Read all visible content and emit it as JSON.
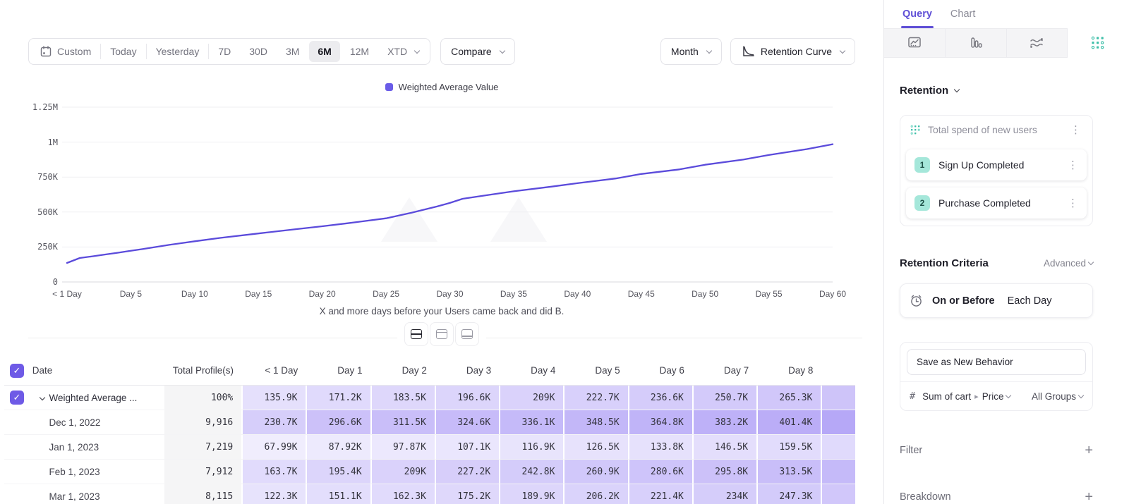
{
  "toolbar": {
    "date_ranges": [
      "Custom",
      "Today",
      "Yesterday",
      "7D",
      "30D",
      "3M",
      "6M",
      "12M",
      "XTD"
    ],
    "active_range": "6M",
    "compare_label": "Compare",
    "granularity": "Month",
    "view_label": "Retention Curve"
  },
  "chart_data": {
    "type": "line",
    "title": "",
    "legend": [
      "Weighted Average Value"
    ],
    "legend_position": "top-center",
    "grid": "horizontal",
    "series": [
      {
        "name": "Weighted Average Value",
        "color": "#5b4bdb",
        "points": [
          [
            0,
            135900
          ],
          [
            1,
            171200
          ],
          [
            2,
            183500
          ],
          [
            3,
            196600
          ],
          [
            4,
            209000
          ],
          [
            5,
            222700
          ],
          [
            6,
            236600
          ],
          [
            7,
            250700
          ],
          [
            8,
            265300
          ],
          [
            10,
            291000
          ],
          [
            12,
            315000
          ],
          [
            15,
            347000
          ],
          [
            18,
            378000
          ],
          [
            20,
            398000
          ],
          [
            22,
            420000
          ],
          [
            25,
            455000
          ],
          [
            27,
            495000
          ],
          [
            29,
            540000
          ],
          [
            30,
            565000
          ],
          [
            31,
            595000
          ],
          [
            33,
            622000
          ],
          [
            35,
            648000
          ],
          [
            38,
            682000
          ],
          [
            40,
            706000
          ],
          [
            43,
            740000
          ],
          [
            45,
            772000
          ],
          [
            48,
            805000
          ],
          [
            50,
            838000
          ],
          [
            53,
            875000
          ],
          [
            55,
            908000
          ],
          [
            58,
            950000
          ],
          [
            60,
            985000
          ]
        ]
      }
    ],
    "x_ticks": [
      {
        "label": "< 1 Day",
        "day": 0
      },
      {
        "label": "Day 5",
        "day": 5
      },
      {
        "label": "Day 10",
        "day": 10
      },
      {
        "label": "Day 15",
        "day": 15
      },
      {
        "label": "Day 20",
        "day": 20
      },
      {
        "label": "Day 25",
        "day": 25
      },
      {
        "label": "Day 30",
        "day": 30
      },
      {
        "label": "Day 35",
        "day": 35
      },
      {
        "label": "Day 40",
        "day": 40
      },
      {
        "label": "Day 45",
        "day": 45
      },
      {
        "label": "Day 50",
        "day": 50
      },
      {
        "label": "Day 55",
        "day": 55
      },
      {
        "label": "Day 60",
        "day": 60
      }
    ],
    "y_ticks": [
      {
        "label": "1.25M",
        "value": 1250000
      },
      {
        "label": "1M",
        "value": 1000000
      },
      {
        "label": "750K",
        "value": 750000
      },
      {
        "label": "500K",
        "value": 500000
      },
      {
        "label": "250K",
        "value": 250000
      },
      {
        "label": "0",
        "value": 0
      }
    ],
    "ylim": [
      0,
      1250000
    ],
    "xlim_days": [
      0,
      60
    ],
    "xlabel": "X and more days before your Users came back and did B."
  },
  "layout_toggle": {
    "options": [
      "split-view",
      "chart-focus",
      "table-focus"
    ],
    "active": "split-view"
  },
  "table": {
    "headers": [
      "Date",
      "Total Profile(s)",
      "< 1 Day",
      "Day 1",
      "Day 2",
      "Day 3",
      "Day 4",
      "Day 5",
      "Day 6",
      "Day 7",
      "Day 8"
    ],
    "select_all_checked": true,
    "rows": [
      {
        "label": "Weighted Average ...",
        "checked": true,
        "expandable": true,
        "total": "100%",
        "values": [
          "135.9K",
          "171.2K",
          "183.5K",
          "196.6K",
          "209K",
          "222.7K",
          "236.6K",
          "250.7K",
          "265.3K"
        ]
      },
      {
        "label": "Dec 1, 2022",
        "total": "9,916",
        "values": [
          "230.7K",
          "296.6K",
          "311.5K",
          "324.6K",
          "336.1K",
          "348.5K",
          "364.8K",
          "383.2K",
          "401.4K"
        ]
      },
      {
        "label": "Jan 1, 2023",
        "total": "7,219",
        "values": [
          "67.99K",
          "87.92K",
          "97.87K",
          "107.1K",
          "116.9K",
          "126.5K",
          "133.8K",
          "146.5K",
          "159.5K"
        ]
      },
      {
        "label": "Feb 1, 2023",
        "total": "7,912",
        "values": [
          "163.7K",
          "195.4K",
          "209K",
          "227.2K",
          "242.8K",
          "260.9K",
          "280.6K",
          "295.8K",
          "313.5K"
        ]
      },
      {
        "label": "Mar 1, 2023",
        "total": "8,115",
        "values": [
          "122.3K",
          "151.1K",
          "162.3K",
          "175.2K",
          "189.9K",
          "206.2K",
          "221.4K",
          "234K",
          "247.3K"
        ]
      }
    ]
  },
  "sidebar": {
    "tabs": [
      {
        "label": "Query",
        "active": true
      },
      {
        "label": "Chart",
        "active": false
      }
    ],
    "report_types": [
      "insights",
      "funnels",
      "flows",
      "retention"
    ],
    "active_report": "retention",
    "section_title": "Retention",
    "behavior_card": {
      "title": "Total spend of new users",
      "steps": [
        {
          "num": "1",
          "label": "Sign Up Completed"
        },
        {
          "num": "2",
          "label": "Purchase Completed"
        }
      ]
    },
    "criteria": {
      "label": "Retention Criteria",
      "mode": "Advanced",
      "condition": "On or Before",
      "frequency": "Each Day"
    },
    "save_behavior_label": "Save as New Behavior",
    "metric": {
      "prefix": "#",
      "event": "Sum of cart",
      "property": "Price",
      "group": "All Groups"
    },
    "filter_label": "Filter",
    "breakdown_label": "Breakdown"
  },
  "colors": {
    "accent_purple": "#6a5ce8",
    "line_purple": "#5b4bdb",
    "teal": "#3fbfa9",
    "heat_base": "rgb(121,94,240)"
  }
}
